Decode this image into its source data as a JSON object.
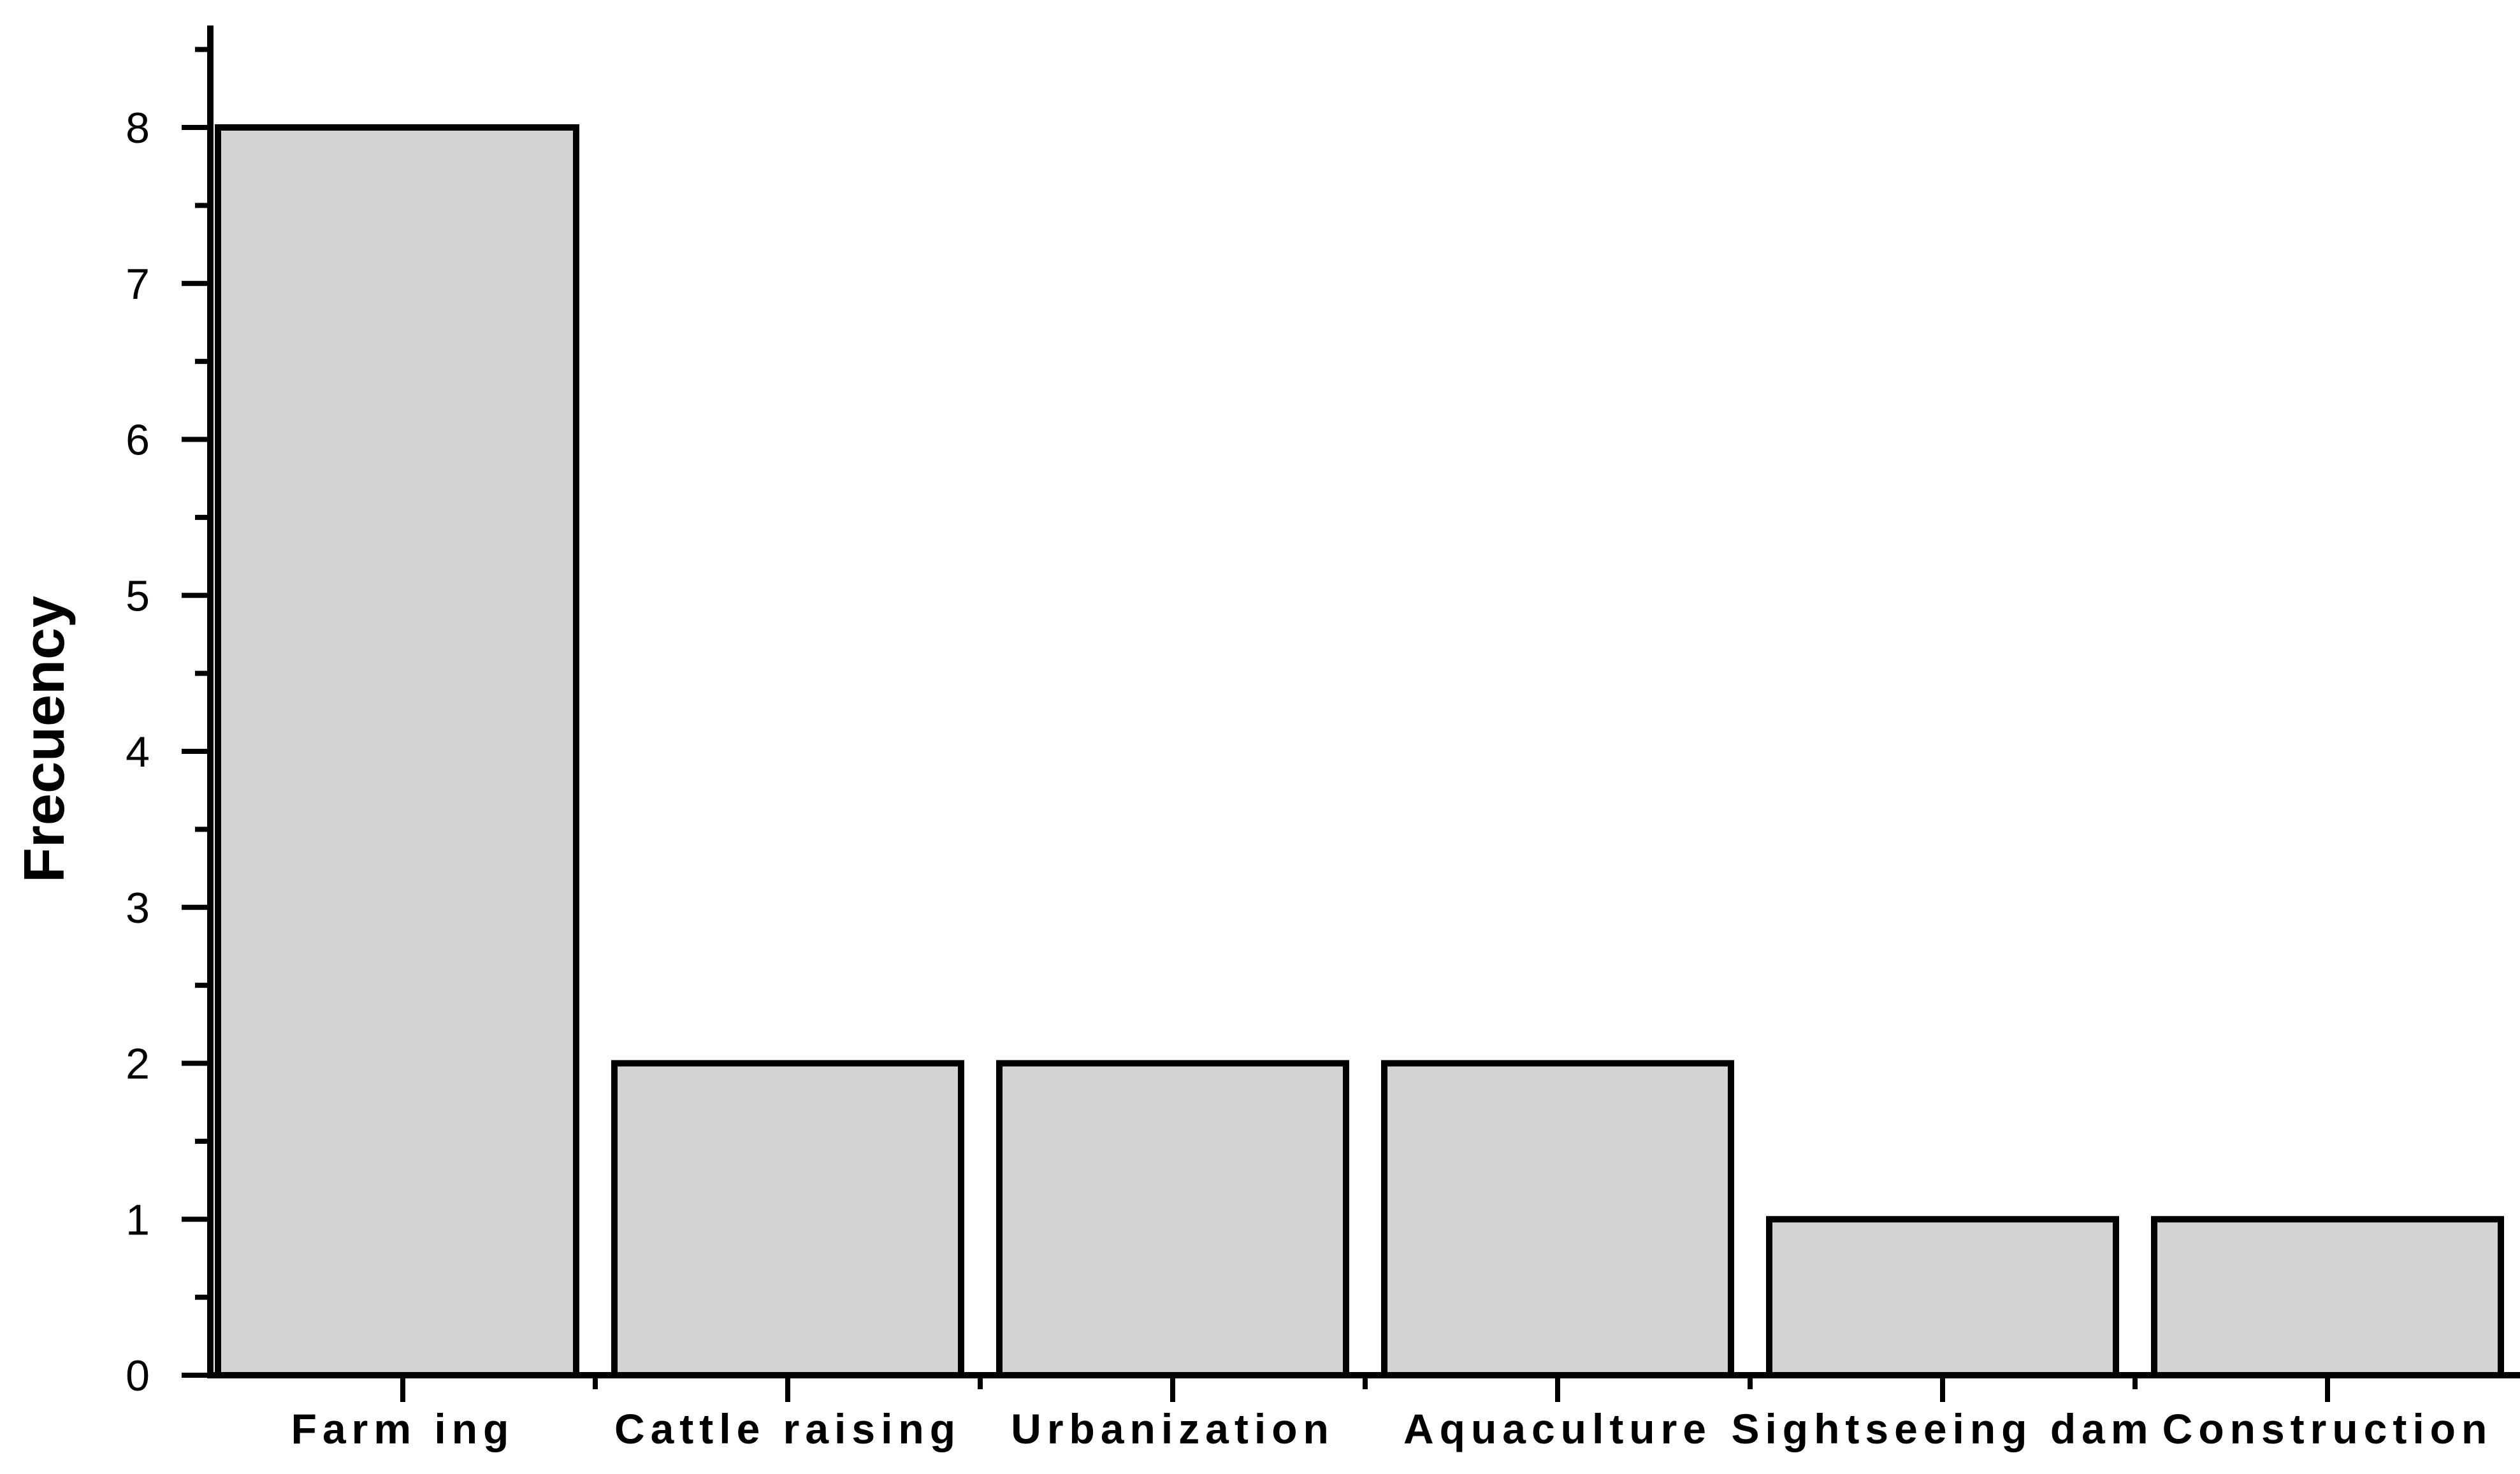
{
  "chart_data": {
    "type": "bar",
    "title": "",
    "xlabel": "",
    "ylabel": "Frecuency",
    "categories": [
      "Farm ing",
      "Cattle raising",
      "Urbanization",
      "Aquaculture",
      "Sightseeing dam",
      "Construction"
    ],
    "values": [
      8,
      2,
      2,
      2,
      1,
      1
    ],
    "ylim": [
      0,
      8
    ],
    "yticks": [
      "0",
      "1",
      "2",
      "3",
      "4",
      "5",
      "6",
      "7",
      "8"
    ],
    "grid": false,
    "legend": "none",
    "colors": {
      "bar_fill": "#d3d3d3",
      "bar_stroke": "#000000",
      "axis": "#000000"
    }
  }
}
